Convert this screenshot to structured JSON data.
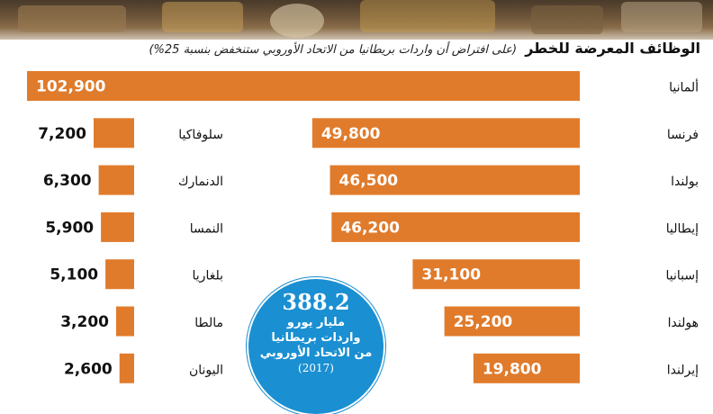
{
  "heading": {
    "main": "الوظائف المعرضة للخطر",
    "sub": "(على افتراض أن واردات بريطانيا من الاتحاد الأوروبي ستنخفض بنسبة 25%)"
  },
  "callout": {
    "value": "388.2",
    "unit": "مليار يورو",
    "line1": "واردات بريطانيا",
    "line2": "من الاتحاد الأوروبي",
    "year": "(2017)"
  },
  "colors": {
    "bar": "#e07b2b",
    "callout": "#1a8fd1",
    "text": "#111111"
  },
  "chart_data": [
    {
      "type": "bar",
      "orientation": "horizontal",
      "categories": [
        "ألمانيا",
        "فرنسا",
        "بولندا",
        "إيطاليا",
        "إسبانيا",
        "هولندا",
        "إيرلندا"
      ],
      "values": [
        102900,
        49800,
        46500,
        46200,
        31100,
        25200,
        19800
      ],
      "labels": [
        "102,900",
        "49,800",
        "46,500",
        "46,200",
        "31,100",
        "25,200",
        "19,800"
      ]
    },
    {
      "type": "bar",
      "orientation": "horizontal",
      "categories": [
        "سلوفاكيا",
        "الدنمارك",
        "النمسا",
        "بلغاريا",
        "مالطا",
        "اليونان"
      ],
      "values": [
        7200,
        6300,
        5900,
        5100,
        3200,
        2600
      ],
      "labels": [
        "7,200",
        "6,300",
        "5,900",
        "5,100",
        "3,200",
        "2,600"
      ]
    }
  ]
}
